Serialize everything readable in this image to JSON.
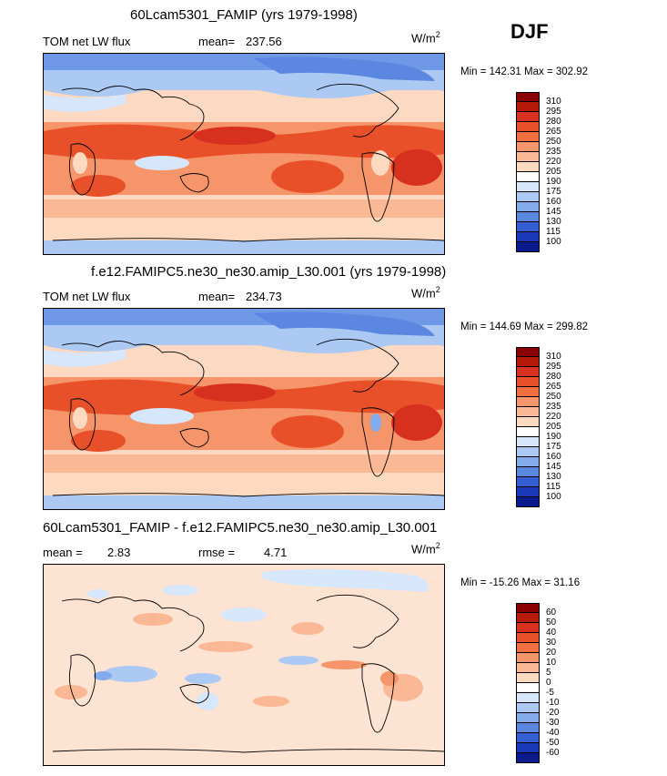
{
  "season": "DJF",
  "units": {
    "base": "W/m",
    "exp": "2"
  },
  "panels": [
    {
      "title": "60Lcam5301_FAMIP (yrs 1979-1998)",
      "left_label": "TOM net LW flux",
      "stat_label": "mean=",
      "stat_value": "237.56",
      "min_label": "Min =",
      "min_value": "142.31",
      "max_label": "Max =",
      "max_value": "302.92"
    },
    {
      "title": "f.e12.FAMIPC5.ne30_ne30.amip_L30.001 (yrs 1979-1998)",
      "left_label": "TOM net LW flux",
      "stat_label": "mean=",
      "stat_value": "234.73",
      "min_label": "Min =",
      "min_value": "144.69",
      "max_label": "Max =",
      "max_value": "299.82"
    },
    {
      "title": "60Lcam5301_FAMIP - f.e12.FAMIPC5.ne30_ne30.amip_L30.001",
      "left_label": "mean =",
      "left_value": "2.83",
      "stat_label": "rmse =",
      "stat_value": "4.71",
      "min_label": "Min =",
      "min_value": "-15.26",
      "max_label": "Max =",
      "max_value": "31.16"
    }
  ],
  "colorbar_abs": {
    "labels": [
      "310",
      "295",
      "280",
      "265",
      "250",
      "235",
      "220",
      "205",
      "190",
      "175",
      "160",
      "145",
      "130",
      "115",
      "100"
    ],
    "colors": [
      "#8b0000",
      "#b51a0a",
      "#d7301f",
      "#e8502a",
      "#f2703f",
      "#f7956a",
      "#fbb894",
      "#fdd9c0",
      "#ffffff",
      "#d6e6fb",
      "#abc9f3",
      "#83aaeb",
      "#5b87e0",
      "#3560d3",
      "#1738b8",
      "#0b1a8c"
    ]
  },
  "colorbar_diff": {
    "labels": [
      "60",
      "50",
      "40",
      "30",
      "20",
      "10",
      "5",
      "0",
      "-5",
      "-10",
      "-20",
      "-30",
      "-40",
      "-50",
      "-60"
    ],
    "colors": [
      "#8b0000",
      "#b51a0a",
      "#d7301f",
      "#e8502a",
      "#f2703f",
      "#f7956a",
      "#fbb894",
      "#fdd9c0",
      "#ffffff",
      "#d6e6fb",
      "#abc9f3",
      "#83aaeb",
      "#5b87e0",
      "#3560d3",
      "#1738b8",
      "#0b1a8c"
    ]
  }
}
